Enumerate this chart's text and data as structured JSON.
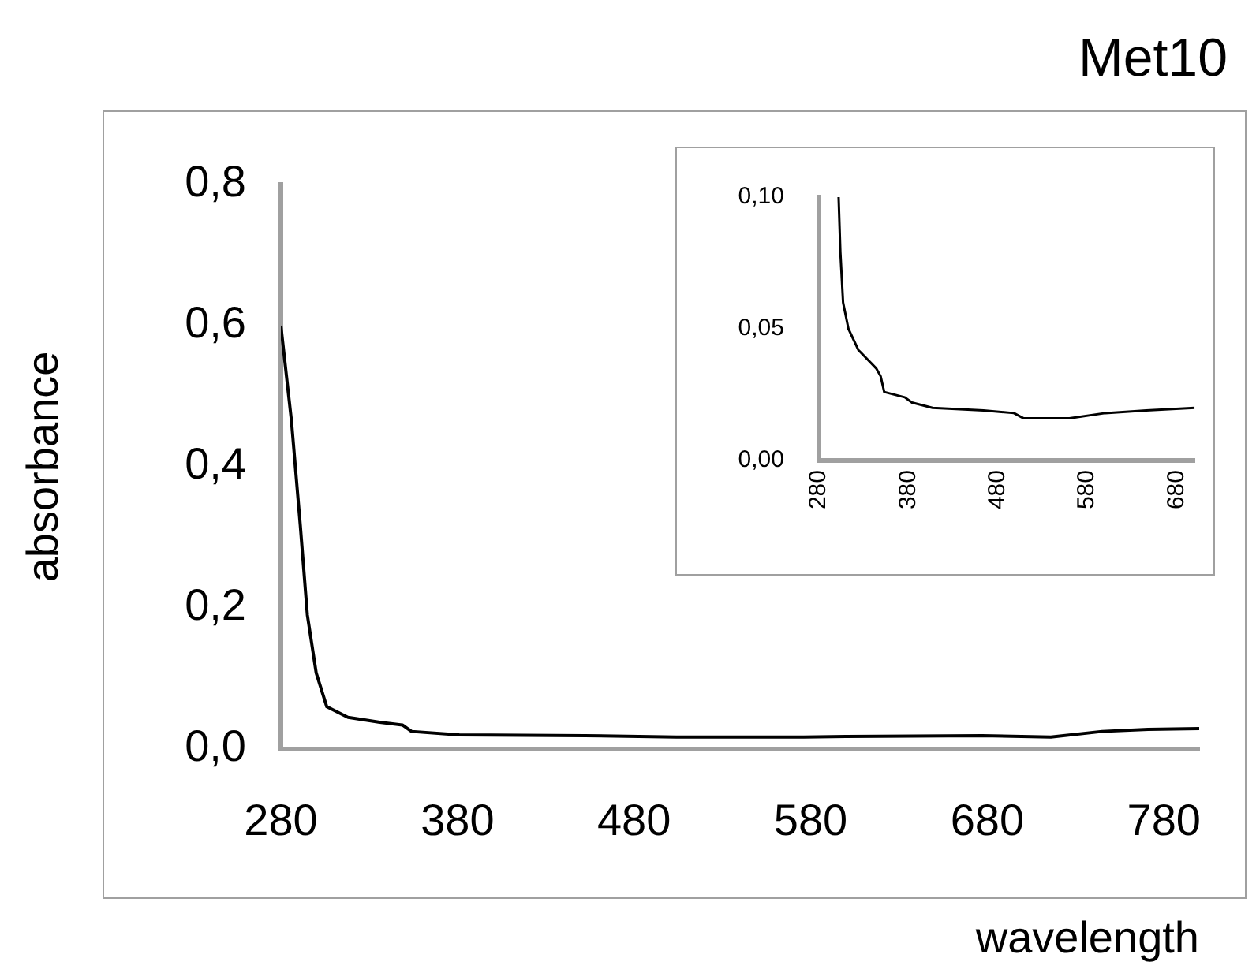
{
  "chart_data": [
    {
      "type": "line",
      "title": "Met10",
      "xlabel": "wavelength",
      "ylabel": "absorbance",
      "x": [
        280,
        286,
        291,
        295,
        300,
        306,
        318,
        336,
        349,
        354,
        381,
        452,
        504,
        576,
        600,
        677,
        716,
        745,
        771,
        800
      ],
      "series": [
        {
          "color": "#000000",
          "values": [
            0.6,
            0.465,
            0.317,
            0.19,
            0.108,
            0.06,
            0.045,
            0.038,
            0.034,
            0.025,
            0.02,
            0.019,
            0.017,
            0.017,
            0.018,
            0.019,
            0.017,
            0.025,
            0.028,
            0.029
          ]
        }
      ],
      "xlim": [
        280,
        800
      ],
      "xticks": [
        280,
        380,
        480,
        580,
        680,
        780
      ],
      "ylim": [
        0,
        0.8
      ],
      "yticks": [
        {
          "value": 0,
          "label": "0,0"
        },
        {
          "value": 0.2,
          "label": "0,2"
        },
        {
          "value": 0.4,
          "label": "0,4"
        },
        {
          "value": 0.6,
          "label": "0,6"
        },
        {
          "value": 0.8,
          "label": "0,8"
        }
      ],
      "grid": false,
      "legend": false,
      "marker": "none"
    },
    {
      "type": "line",
      "x": [
        302,
        304,
        307,
        313,
        324,
        344,
        349,
        353,
        376,
        384,
        407,
        464,
        498,
        509,
        560,
        600,
        646,
        700
      ],
      "series": [
        {
          "color": "#000000",
          "values": [
            0.1,
            0.079,
            0.06,
            0.05,
            0.042,
            0.035,
            0.032,
            0.026,
            0.024,
            0.022,
            0.02,
            0.019,
            0.018,
            0.016,
            0.016,
            0.018,
            0.019,
            0.02
          ]
        }
      ],
      "xlim": [
        280,
        700
      ],
      "xticks": [
        280,
        380,
        480,
        580,
        680
      ],
      "ylim": [
        0,
        0.1
      ],
      "yticks": [
        {
          "value": 0,
          "label": "0,00"
        },
        {
          "value": 0.05,
          "label": "0,05"
        },
        {
          "value": 0.1,
          "label": "0,10"
        }
      ],
      "grid": false,
      "legend": false,
      "marker": "none"
    }
  ]
}
